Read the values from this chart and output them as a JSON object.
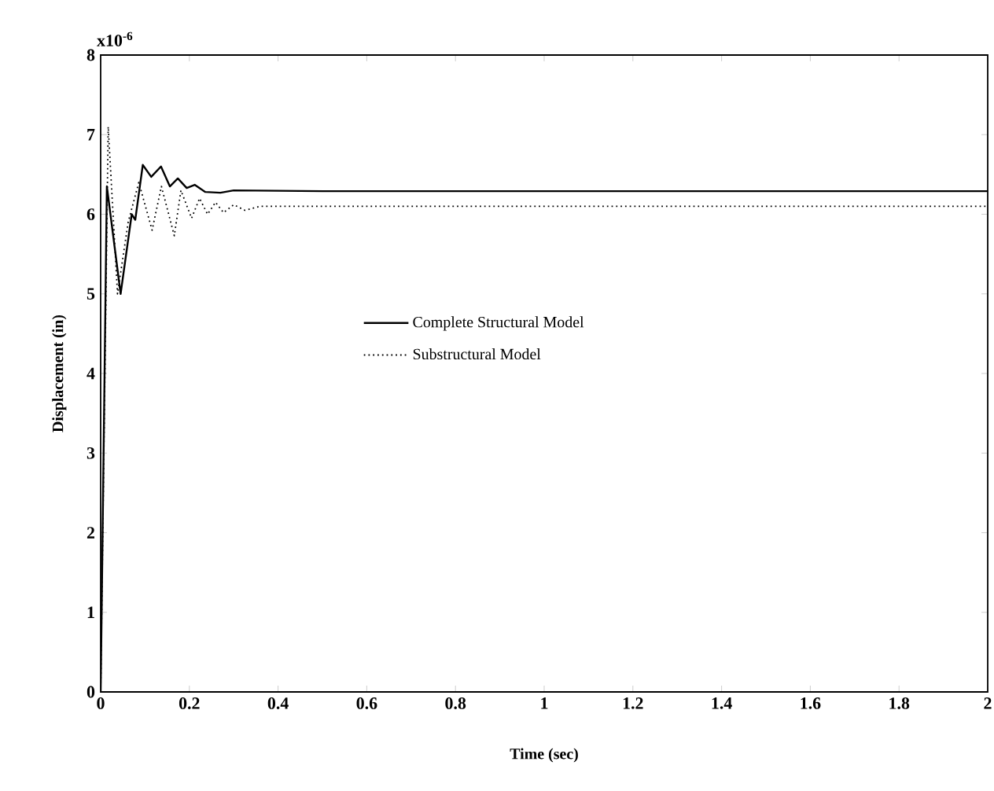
{
  "chart_data": {
    "type": "line",
    "xlabel": "Time (sec)",
    "ylabel": "Displacement (in)",
    "annotations": [
      "x10$^{-6}$"
    ],
    "xlim": [
      0,
      2
    ],
    "ylim": [
      0,
      8
    ],
    "xticks": [
      0,
      0.2,
      0.4,
      0.6,
      0.8,
      1,
      1.2,
      1.4,
      1.6,
      1.8,
      2
    ],
    "yticks": [
      0,
      1,
      2,
      3,
      4,
      5,
      6,
      7,
      8
    ],
    "grid": false,
    "legend": "center",
    "marker": "none",
    "series": [
      {
        "name": "Complete Structural Model",
        "color": "#000000",
        "line_style": "solid",
        "x": [
          0,
          0.014,
          0.045,
          0.07,
          0.078,
          0.095,
          0.114,
          0.136,
          0.156,
          0.174,
          0.194,
          0.212,
          0.236,
          0.27,
          0.3,
          0.5,
          1,
          1.5,
          2
        ],
        "values": [
          0,
          6.35,
          5.0,
          6.0,
          5.93,
          6.62,
          6.47,
          6.6,
          6.35,
          6.45,
          6.33,
          6.37,
          6.28,
          6.27,
          6.3,
          6.29,
          6.29,
          6.29,
          6.29
        ]
      },
      {
        "name": "Substructural Model",
        "color": "#000000",
        "line_style": "dotted",
        "x": [
          0,
          0.017,
          0.038,
          0.062,
          0.086,
          0.116,
          0.137,
          0.166,
          0.181,
          0.205,
          0.223,
          0.241,
          0.259,
          0.277,
          0.3,
          0.325,
          0.36,
          1,
          2
        ],
        "values": [
          0,
          7.1,
          5.0,
          5.9,
          6.4,
          5.8,
          6.35,
          5.73,
          6.3,
          5.95,
          6.2,
          6.0,
          6.15,
          6.02,
          6.12,
          6.05,
          6.1,
          6.1,
          6.1
        ]
      }
    ]
  }
}
